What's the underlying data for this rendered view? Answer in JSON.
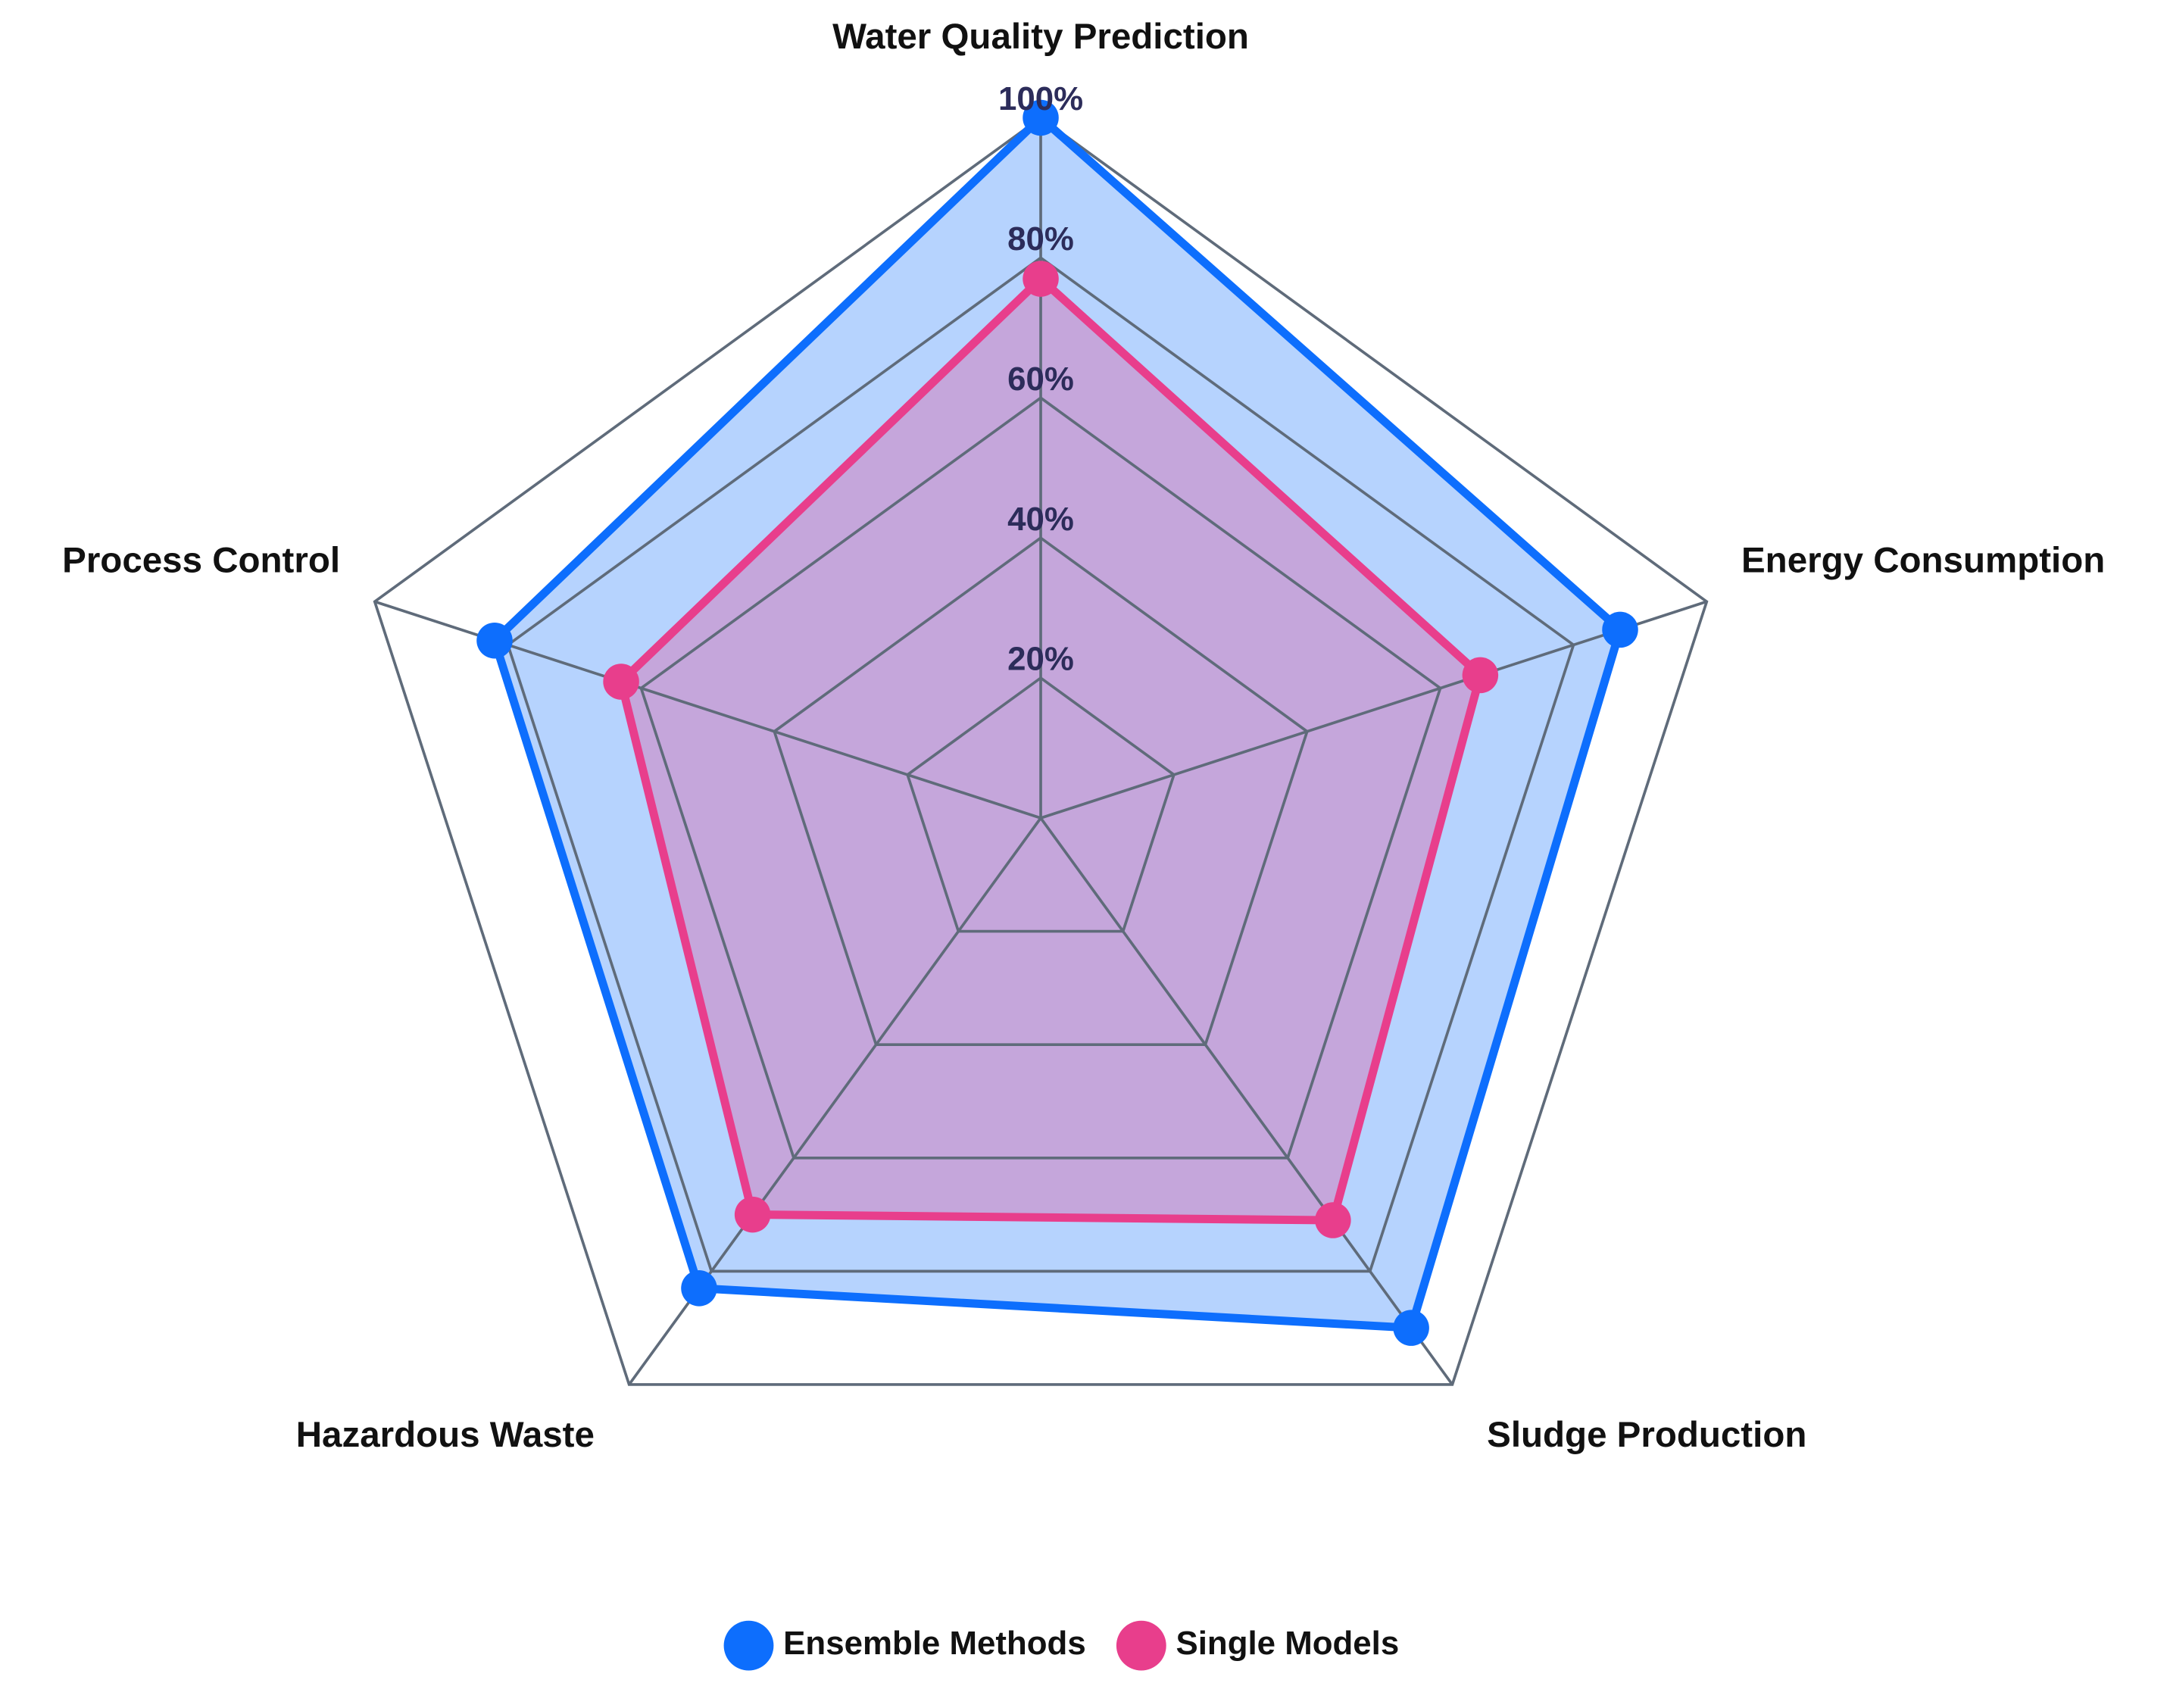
{
  "chart_data": {
    "type": "radar",
    "categories": [
      "Water Quality Prediction",
      "Energy Consumption",
      "Sludge Production",
      "Hazardous Waste",
      "Process Control"
    ],
    "series": [
      {
        "name": "Ensemble Methods",
        "color": "#0d6efd",
        "values": [
          100,
          87,
          90,
          83,
          82
        ]
      },
      {
        "name": "Single Models",
        "color": "#e83e8c",
        "values": [
          77,
          66,
          71,
          70,
          63
        ]
      }
    ],
    "rlim": [
      0,
      100
    ],
    "rticks": [
      {
        "value": 20,
        "label": "20%"
      },
      {
        "value": 40,
        "label": "40%"
      },
      {
        "value": 60,
        "label": "60%"
      },
      {
        "value": 80,
        "label": "80%"
      },
      {
        "value": 100,
        "label": "100%"
      }
    ],
    "grid": true,
    "legend": "bottom"
  }
}
